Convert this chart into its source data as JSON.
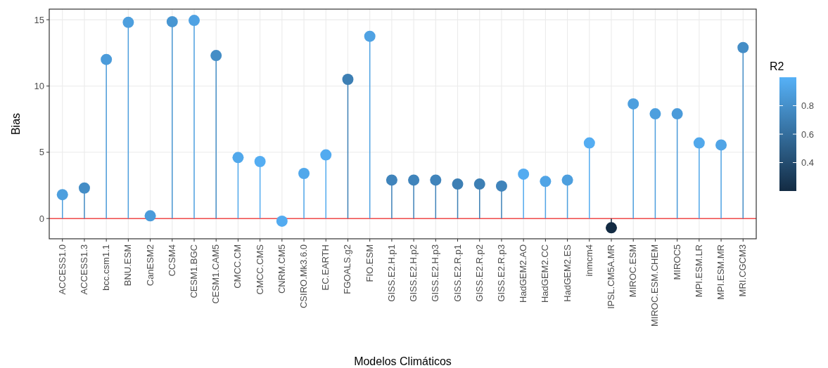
{
  "chart_data": {
    "type": "lollipop",
    "xlabel": "Modelos Climáticos",
    "ylabel": "Bias",
    "clabel": "R2",
    "categories": [
      "ACCESS1.0",
      "ACCESS1.3",
      "bcc.csm1.1",
      "BNU.ESM",
      "CanESM2",
      "CCSM4",
      "CESM1.BGC",
      "CESM1.CAM5",
      "CMCC.CM",
      "CMCC.CMS",
      "CNRM.CM5",
      "CSIRO.Mk3.6.0",
      "EC.EARTH",
      "FGOALS.g2",
      "FIO.ESM",
      "GISS.E2.H.p1",
      "GISS.E2.H.p2",
      "GISS.E2.H.p3",
      "GISS.E2.R.p1",
      "GISS.E2.R.p2",
      "GISS.E2.R.p3",
      "HadGEM2.AO",
      "HadGEM2.CC",
      "HadGEM2.ES",
      "inmcm4",
      "IPSL.CM5A.MR",
      "MIROC.ESM",
      "MIROC.ESM.CHEM",
      "MIROC5",
      "MPI.ESM.LR",
      "MPI.ESM.MR",
      "MRI.CGCM3"
    ],
    "values": [
      1.8,
      2.3,
      12.0,
      14.8,
      0.2,
      14.85,
      14.95,
      12.3,
      4.6,
      4.3,
      -0.2,
      3.4,
      4.8,
      10.5,
      13.75,
      2.9,
      2.9,
      2.9,
      2.6,
      2.6,
      2.45,
      3.35,
      2.8,
      2.9,
      5.7,
      -0.7,
      8.65,
      7.9,
      7.9,
      5.7,
      5.55,
      12.9
    ],
    "cvalues": [
      0.9,
      0.8,
      0.88,
      0.9,
      0.88,
      0.85,
      0.92,
      0.8,
      0.95,
      0.98,
      0.97,
      0.95,
      0.97,
      0.72,
      0.92,
      0.75,
      0.75,
      0.75,
      0.72,
      0.72,
      0.75,
      0.97,
      0.93,
      0.9,
      0.98,
      0.2,
      0.9,
      0.9,
      0.88,
      0.95,
      0.93,
      0.8
    ],
    "clim": [
      0.2,
      1.0
    ],
    "cticks": [
      0.4,
      0.6,
      0.8
    ],
    "ylim": [
      -1.53,
      15.8
    ],
    "yticks": [
      0,
      5,
      10,
      15
    ],
    "grid": true,
    "marker": "circle",
    "ref_lines": [
      {
        "axis": "y",
        "value": 0,
        "color": "#f24b4b"
      }
    ]
  }
}
